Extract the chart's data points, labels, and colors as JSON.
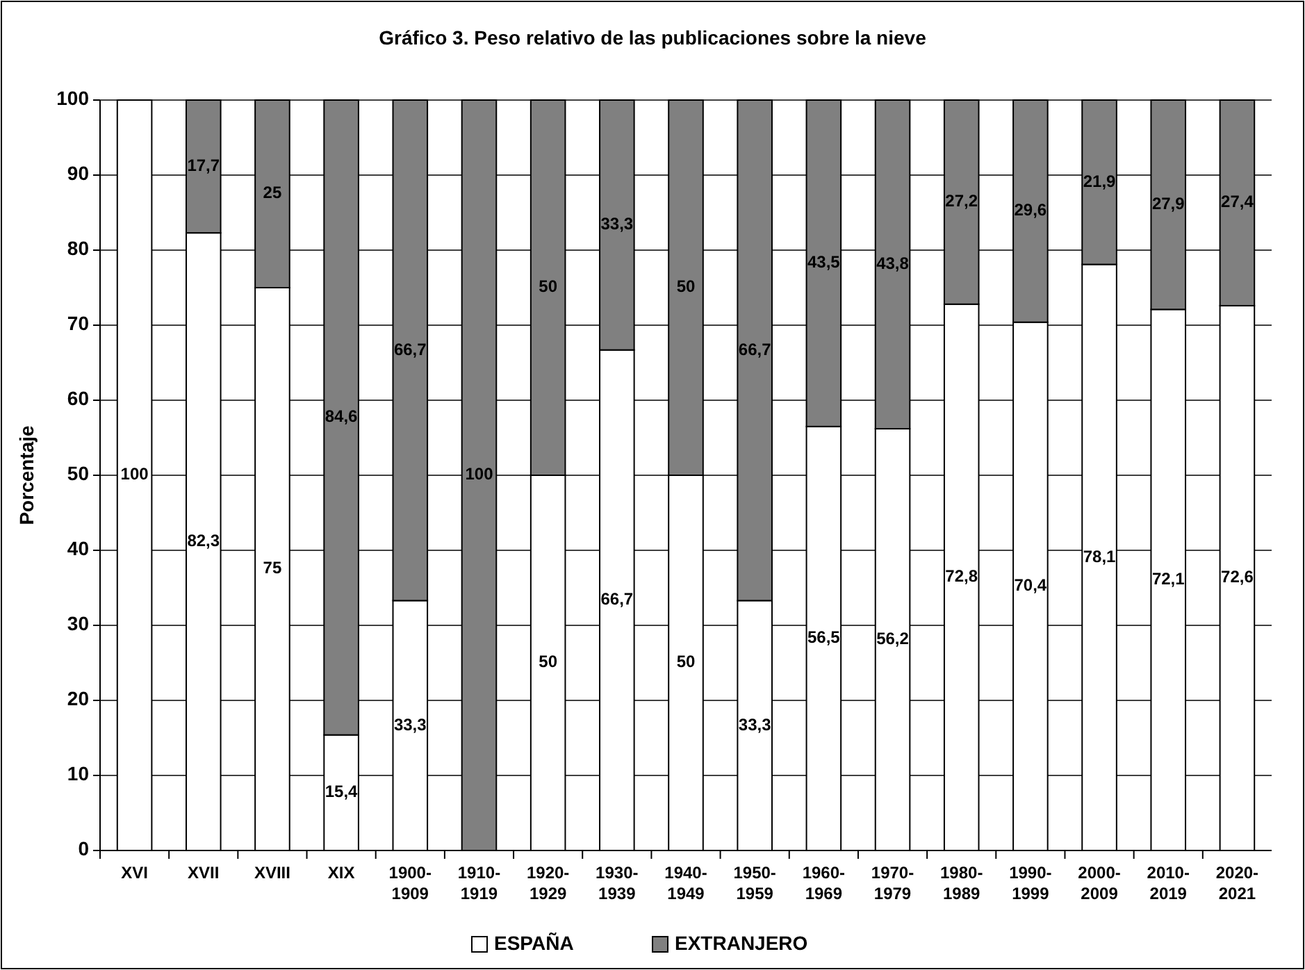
{
  "chart_data": {
    "type": "bar",
    "stacked": true,
    "title": "Gráfico 3. Peso relativo de las publicaciones sobre la nieve",
    "ylabel": "Porcentaje",
    "categories": [
      "XVI",
      "XVII",
      "XVIII",
      "XIX",
      "1900-1909",
      "1910-1919",
      "1920-1929",
      "1930-1939",
      "1940-1949",
      "1950-1959",
      "1960-1969",
      "1970-1979",
      "1980-1989",
      "1990-1999",
      "2000-2009",
      "2010-2019",
      "2020-2021"
    ],
    "series": [
      {
        "name": "ESPAÑA",
        "color": "#ffffff",
        "values": [
          100,
          82.3,
          75,
          15.4,
          33.3,
          0,
          50,
          66.7,
          50,
          33.3,
          56.5,
          56.2,
          72.8,
          70.4,
          78.1,
          72.1,
          72.6
        ],
        "value_labels": [
          "100",
          "82,3",
          "75",
          "15,4",
          "33,3",
          null,
          "50",
          "66,7",
          "50",
          "33,3",
          "56,5",
          "56,2",
          "72,8",
          "70,4",
          "78,1",
          "72,1",
          "72,6"
        ]
      },
      {
        "name": "EXTRANJERO",
        "color": "#808080",
        "values": [
          0,
          17.7,
          25,
          84.6,
          66.7,
          100,
          50,
          33.3,
          50,
          66.7,
          43.5,
          43.8,
          27.2,
          29.6,
          21.9,
          27.9,
          27.4
        ],
        "value_labels": [
          null,
          "17,7",
          "25",
          "84,6",
          "66,7",
          "100",
          "50",
          "33,3",
          "50",
          "66,7",
          "43,5",
          "43,8",
          "27,2",
          "29,6",
          "21,9",
          "27,9",
          "27,4"
        ]
      }
    ],
    "ylim": [
      0,
      100
    ],
    "yticks": [
      0,
      10,
      20,
      30,
      40,
      50,
      60,
      70,
      80,
      90,
      100
    ],
    "grid": "y",
    "legend": "bottom"
  }
}
